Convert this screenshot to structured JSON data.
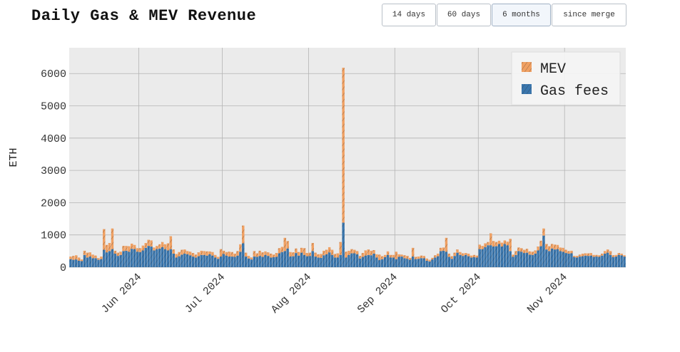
{
  "header": {
    "title": "Daily Gas & MEV Revenue"
  },
  "range_selector": {
    "buttons": [
      "14 days",
      "60 days",
      "6 months",
      "since merge"
    ],
    "selected": "6 months"
  },
  "colors": {
    "gas": "#3a76ad",
    "mev": "#f0a062",
    "plot_bg": "#ebebeb",
    "grid": "#b4b4b4"
  },
  "chart_data": {
    "type": "bar",
    "stacked": true,
    "title": "Daily Gas & MEV Revenue",
    "xlabel": "",
    "ylabel": "ETH",
    "start_date": "2024-05-07",
    "end_date": "2024-11-04",
    "x_ticks": [
      {
        "date": "2024-06-01",
        "label": "Jun 2024"
      },
      {
        "date": "2024-07-01",
        "label": "Jul 2024"
      },
      {
        "date": "2024-08-01",
        "label": "Aug 2024"
      },
      {
        "date": "2024-09-01",
        "label": "Sep 2024"
      },
      {
        "date": "2024-10-01",
        "label": "Oct 2024"
      },
      {
        "date": "2024-11-01",
        "label": "Nov 2024"
      }
    ],
    "y_ticks": [
      0,
      1000,
      2000,
      3000,
      4000,
      5000,
      6000
    ],
    "ylim": [
      0,
      6800
    ],
    "grid": true,
    "legend_position": "top-right",
    "series": [
      {
        "name": "Gas fees",
        "values": [
          250,
          230,
          240,
          200,
          190,
          380,
          300,
          330,
          280,
          280,
          230,
          250,
          540,
          460,
          500,
          560,
          420,
          350,
          380,
          500,
          510,
          480,
          570,
          560,
          480,
          470,
          520,
          600,
          660,
          640,
          520,
          560,
          580,
          620,
          560,
          520,
          560,
          420,
          300,
          340,
          390,
          420,
          400,
          370,
          330,
          300,
          340,
          380,
          380,
          360,
          400,
          360,
          300,
          260,
          330,
          410,
          360,
          330,
          330,
          320,
          360,
          480,
          740,
          330,
          270,
          240,
          330,
          320,
          350,
          320,
          380,
          350,
          300,
          310,
          320,
          430,
          470,
          500,
          580,
          330,
          340,
          440,
          360,
          450,
          380,
          340,
          350,
          500,
          330,
          300,
          290,
          370,
          400,
          460,
          380,
          300,
          300,
          380,
          1380,
          300,
          380,
          430,
          430,
          400,
          270,
          320,
          360,
          380,
          370,
          420,
          300,
          220,
          250,
          310,
          380,
          300,
          300,
          250,
          320,
          330,
          280,
          260,
          230,
          330,
          250,
          260,
          280,
          280,
          200,
          180,
          240,
          300,
          340,
          500,
          510,
          480,
          320,
          260,
          350,
          450,
          380,
          350,
          380,
          340,
          300,
          310,
          300,
          560,
          560,
          620,
          680,
          680,
          640,
          650,
          720,
          640,
          720,
          680,
          500,
          320,
          380,
          500,
          480,
          440,
          450,
          390,
          380,
          420,
          520,
          650,
          980,
          550,
          500,
          580,
          550,
          560,
          500,
          480,
          440,
          420,
          430,
          310,
          300,
          330,
          340,
          360,
          350,
          360,
          320,
          330,
          320,
          360,
          420,
          450,
          380,
          310,
          330,
          380,
          370,
          330
        ]
      },
      {
        "name": "MEV",
        "values": [
          80,
          120,
          130,
          100,
          50,
          130,
          150,
          130,
          110,
          80,
          50,
          80,
          640,
          230,
          250,
          640,
          90,
          100,
          100,
          160,
          150,
          170,
          160,
          130,
          110,
          120,
          150,
          150,
          190,
          190,
          90,
          100,
          130,
          160,
          150,
          220,
          400,
          130,
          110,
          130,
          150,
          130,
          100,
          110,
          110,
          90,
          120,
          130,
          120,
          130,
          90,
          110,
          80,
          60,
          230,
          100,
          110,
          150,
          140,
          100,
          140,
          230,
          550,
          120,
          80,
          60,
          170,
          110,
          160,
          140,
          110,
          110,
          120,
          80,
          120,
          160,
          160,
          410,
          230,
          140,
          120,
          140,
          110,
          150,
          210,
          100,
          100,
          250,
          120,
          100,
          120,
          140,
          140,
          160,
          160,
          110,
          130,
          400,
          4800,
          180,
          130,
          130,
          110,
          100,
          80,
          120,
          160,
          170,
          140,
          110,
          100,
          170,
          90,
          70,
          110,
          80,
          80,
          230,
          80,
          60,
          90,
          90,
          60,
          270,
          70,
          70,
          80,
          70,
          70,
          50,
          50,
          70,
          80,
          100,
          100,
          430,
          100,
          80,
          100,
          100,
          90,
          80,
          60,
          80,
          60,
          70,
          60,
          140,
          100,
          120,
          100,
          370,
          170,
          130,
          100,
          120,
          110,
          110,
          380,
          70,
          120,
          110,
          110,
          100,
          120,
          100,
          100,
          100,
          120,
          170,
          220,
          170,
          150,
          140,
          150,
          130,
          110,
          120,
          100,
          80,
          80,
          40,
          50,
          60,
          80,
          70,
          80,
          80,
          60,
          50,
          50,
          60,
          80,
          100,
          120,
          60,
          50,
          60,
          50,
          40
        ]
      }
    ]
  }
}
